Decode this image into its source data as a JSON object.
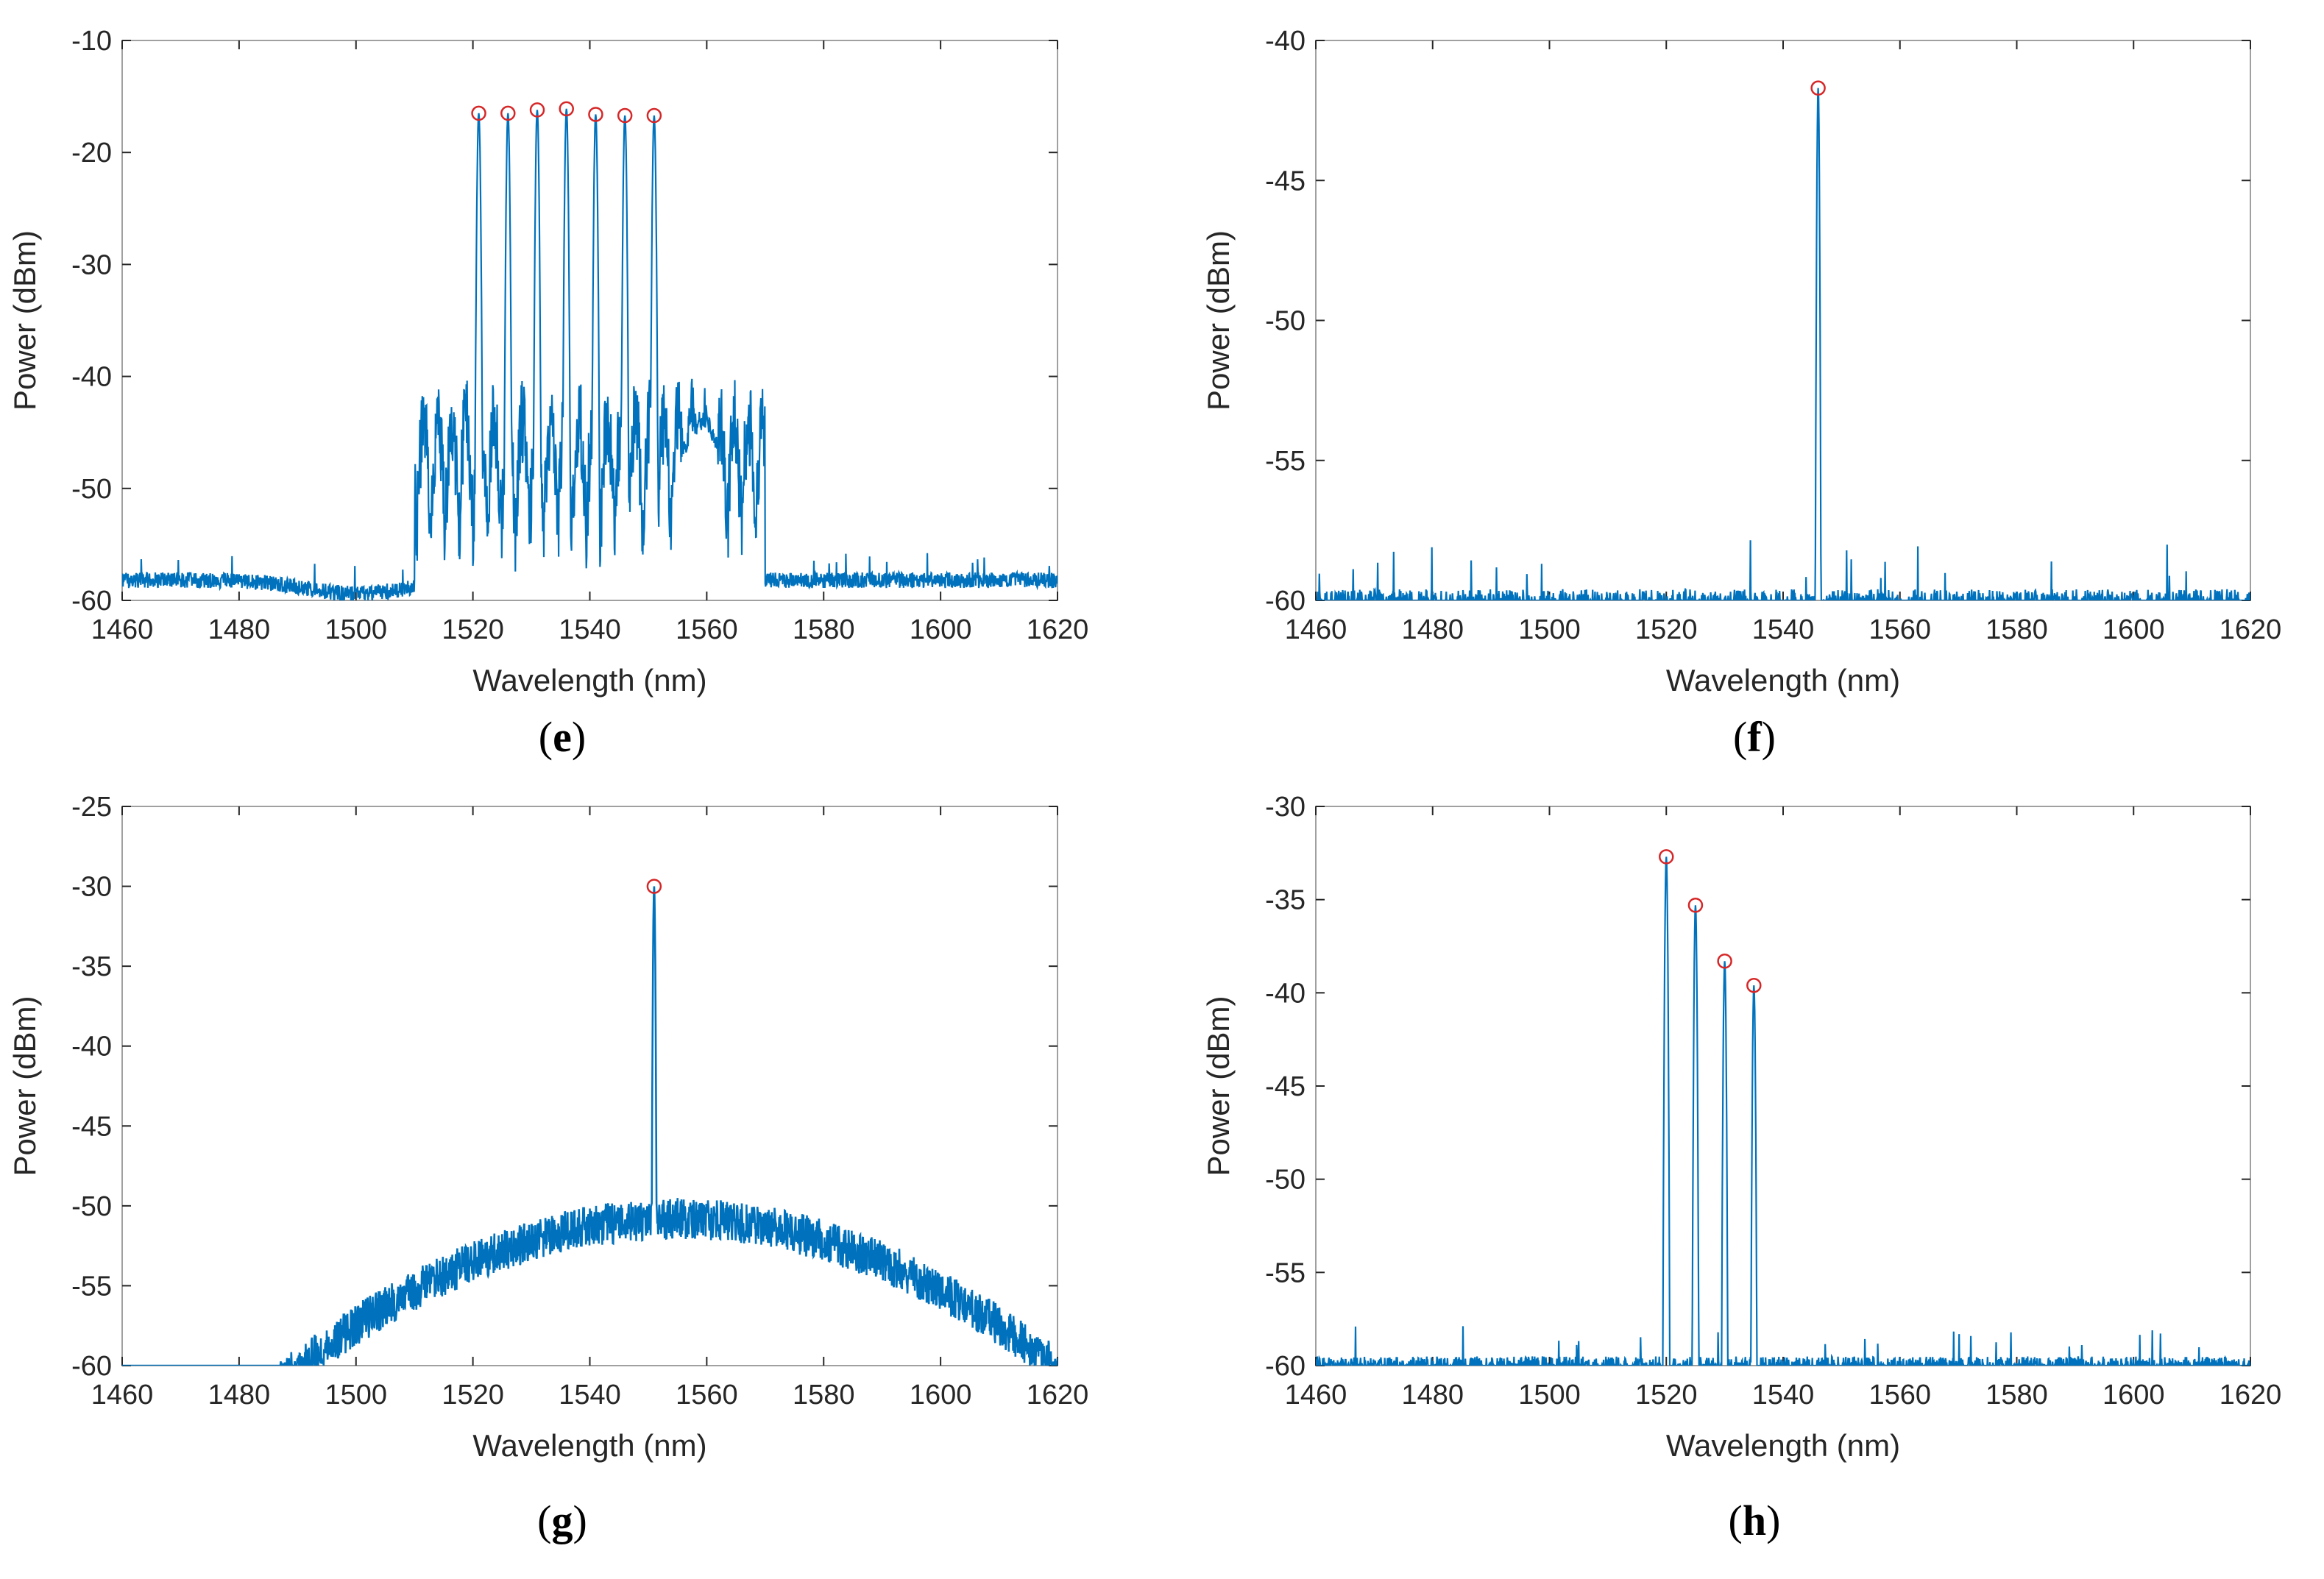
{
  "colors": {
    "trace": "#0072BD",
    "marker": "#D62728",
    "axis": "#262626",
    "frame": "#A0A0A0"
  },
  "chart_data": [
    {
      "panel": "(e)",
      "letter": "e",
      "type": "line",
      "title": "",
      "xlabel": "Wavelength (nm)",
      "ylabel": "Power (dBm)",
      "xlim": [
        1460,
        1620
      ],
      "ylim": [
        -60,
        -10
      ],
      "xticks": [
        1460,
        1480,
        1500,
        1520,
        1540,
        1560,
        1580,
        1600,
        1620
      ],
      "yticks": [
        -10,
        -20,
        -30,
        -40,
        -50,
        -60
      ],
      "noise_floor": -57.5,
      "peaks": [
        {
          "x": 1521,
          "y": -16.5
        },
        {
          "x": 1526,
          "y": -16.5
        },
        {
          "x": 1531,
          "y": -16.2
        },
        {
          "x": 1536,
          "y": -16.1
        },
        {
          "x": 1541,
          "y": -16.6
        },
        {
          "x": 1546,
          "y": -16.7
        },
        {
          "x": 1551,
          "y": -16.7
        }
      ],
      "markers_shown": true
    },
    {
      "panel": "(f)",
      "letter": "f",
      "type": "line",
      "title": "",
      "xlabel": "Wavelength (nm)",
      "ylabel": "Power (dBm)",
      "xlim": [
        1460,
        1620
      ],
      "ylim": [
        -60,
        -40
      ],
      "xticks": [
        1460,
        1480,
        1500,
        1520,
        1540,
        1560,
        1580,
        1600,
        1620
      ],
      "yticks": [
        -40,
        -45,
        -50,
        -55,
        -60
      ],
      "noise_floor": -59.6,
      "peaks": [
        {
          "x": 1546,
          "y": -41.7
        }
      ],
      "markers_shown": true
    },
    {
      "panel": "(g)",
      "letter": "g",
      "type": "line",
      "title": "",
      "xlabel": "Wavelength (nm)",
      "ylabel": "Power (dBm)",
      "xlim": [
        1460,
        1620
      ],
      "ylim": [
        -60,
        -25
      ],
      "xticks": [
        1460,
        1480,
        1500,
        1520,
        1540,
        1560,
        1580,
        1600,
        1620
      ],
      "yticks": [
        -25,
        -30,
        -35,
        -40,
        -45,
        -50,
        -55,
        -60
      ],
      "noise_floor": -50,
      "peaks": [
        {
          "x": 1551,
          "y": -30
        }
      ],
      "markers_shown": true
    },
    {
      "panel": "(h)",
      "letter": "h",
      "type": "line",
      "title": "",
      "xlabel": "Wavelength (nm)",
      "ylabel": "Power (dBm)",
      "xlim": [
        1460,
        1620
      ],
      "ylim": [
        -60,
        -30
      ],
      "xticks": [
        1460,
        1480,
        1500,
        1520,
        1540,
        1560,
        1580,
        1600,
        1620
      ],
      "yticks": [
        -30,
        -35,
        -40,
        -45,
        -50,
        -55,
        -60
      ],
      "noise_floor": -59.5,
      "peaks": [
        {
          "x": 1520,
          "y": -32.7
        },
        {
          "x": 1525,
          "y": -35.3
        },
        {
          "x": 1530,
          "y": -38.3
        },
        {
          "x": 1535,
          "y": -39.6
        }
      ],
      "markers_shown": true
    }
  ]
}
